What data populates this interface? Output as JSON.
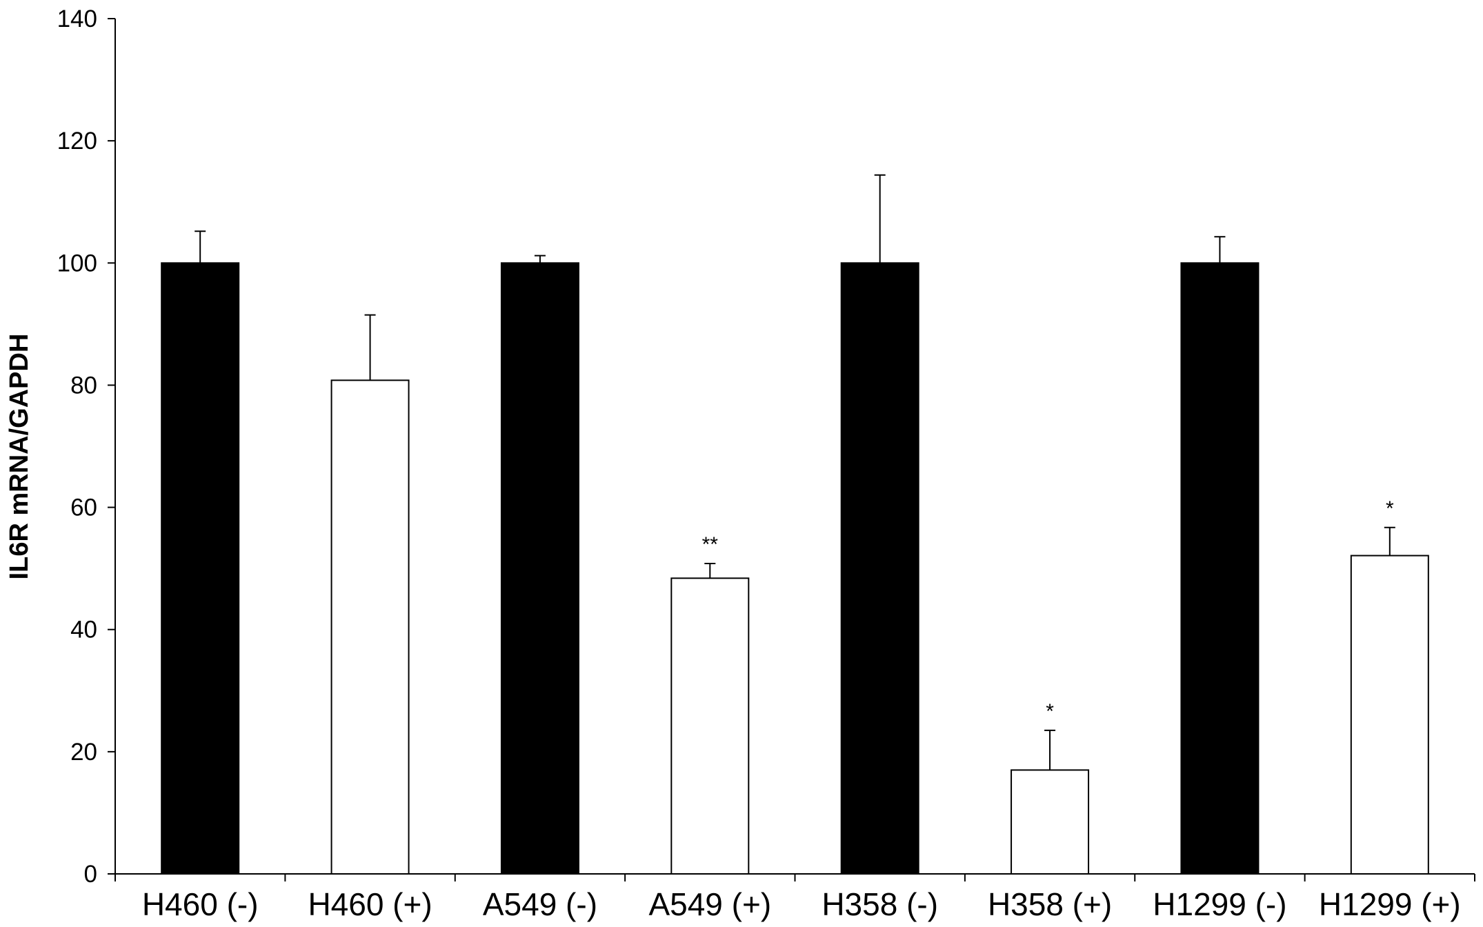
{
  "chart_data": {
    "type": "bar",
    "title": "",
    "xlabel": "",
    "ylabel": "IL6R mRNA/GAPDH",
    "ylim": [
      0,
      140
    ],
    "yticks": [
      0,
      20,
      40,
      60,
      80,
      100,
      120,
      140
    ],
    "grid": false,
    "legend": "none",
    "categories": [
      "H460 (-)",
      "H460 (+)",
      "A549 (-)",
      "A549 (+)",
      "H358 (-)",
      "H358 (+)",
      "H1299 (-)",
      "H1299 (+)"
    ],
    "values": [
      100,
      80.8,
      100,
      48.4,
      100,
      17,
      100,
      52.1
    ],
    "error_upper": [
      5.2,
      10.7,
      1.2,
      2.4,
      14.4,
      6.5,
      4.3,
      4.6
    ],
    "significance": [
      "",
      "",
      "",
      "**",
      "",
      "*",
      "",
      "*"
    ],
    "bar_fills": [
      "#000000",
      "#ffffff",
      "#000000",
      "#ffffff",
      "#000000",
      "#ffffff",
      "#000000",
      "#ffffff"
    ]
  }
}
